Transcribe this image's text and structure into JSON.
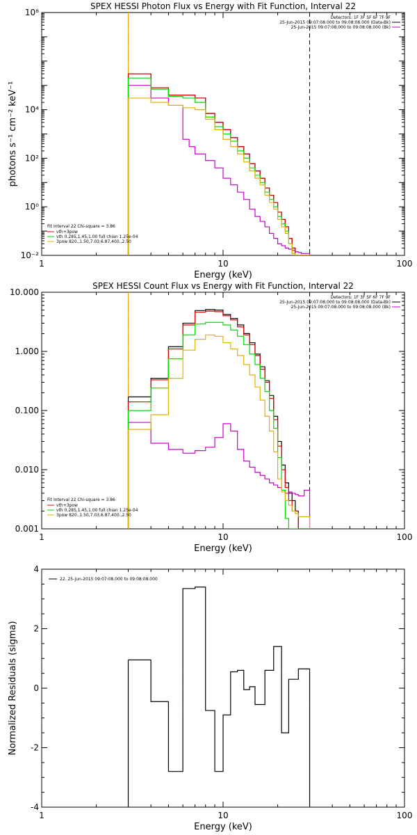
{
  "chart_data": [
    {
      "type": "line",
      "title": "SPEX HESSI Photon Flux vs Energy with Fit Function, Interval 22",
      "xlabel": "Energy (keV)",
      "ylabel": "photons s⁻¹ cm⁻² keV⁻¹",
      "xscale": "log",
      "yscale": "log",
      "xlim": [
        1,
        100
      ],
      "ylim": [
        0.01,
        100000000
      ],
      "x_ticks": [
        {
          "value": 1,
          "label": "1"
        },
        {
          "value": 10,
          "label": "10"
        },
        {
          "value": 100,
          "label": "100"
        }
      ],
      "y_ticks": [
        {
          "value": 0.01,
          "label": "10⁻²"
        },
        {
          "value": 1,
          "label": "10⁰"
        },
        {
          "value": 100,
          "label": "10²"
        },
        {
          "value": 10000,
          "label": "10⁴"
        },
        {
          "value": 100000000,
          "label": "10⁸"
        }
      ],
      "x_edges": [
        3,
        3.5,
        4,
        5,
        6,
        6.5,
        7,
        8,
        9,
        10,
        11,
        12,
        13,
        14,
        15,
        16,
        17,
        18,
        19,
        20,
        21,
        22,
        23,
        24,
        25,
        26,
        27,
        28,
        30
      ],
      "vlines": [
        {
          "x": 3,
          "style": "dotted",
          "color": "#000000"
        },
        {
          "x": 3,
          "style": "solid",
          "color": "#ffa500"
        },
        {
          "x": 30,
          "style": "dashed",
          "color": "#000000"
        }
      ],
      "series": [
        {
          "name": "Detectors: 1F 3F 5F 6F 7F 9F",
          "color": "#000000",
          "y": []
        },
        {
          "name": "25-Jun-2015 09:07:08.000 to 09:08:08.000 (Data-Bk)",
          "color": "#000000",
          "y": [
            300000,
            300000,
            80000,
            40000,
            40000,
            40000,
            30000,
            7000,
            3000,
            1500,
            700,
            300,
            150,
            60,
            30,
            15,
            6,
            3,
            1.5,
            0.6,
            0.3,
            0.15,
            0.05,
            0.02,
            0.01,
            0.01,
            0.01,
            0.01
          ]
        },
        {
          "name": "25-Jun-2015 09:07:08.000 to 09:08:08.000 (Bk)",
          "color": "#cc00cc",
          "y": [
            100000,
            100000,
            30000,
            15000,
            600,
            300,
            150,
            80,
            40,
            15,
            8,
            4,
            2,
            0.8,
            0.4,
            0.25,
            0.15,
            0.08,
            0.05,
            0.03,
            0.025,
            0.02,
            0.018,
            0.016,
            0.014,
            0.013,
            0.012,
            0.012
          ]
        },
        {
          "name": "vth+3pow",
          "color": "#d40000",
          "y": [
            300000,
            300000,
            80000,
            40000,
            40000,
            40000,
            30000,
            7000,
            3000,
            1500,
            700,
            300,
            150,
            60,
            30,
            15,
            6,
            3,
            1.5,
            0.6,
            0.3,
            0.15,
            0.05,
            0.02,
            0.01,
            0.01,
            0.01,
            0.01
          ]
        },
        {
          "name": "vth 0.285,1.45,1.00 full chian 1.25e-04",
          "color": "#00dd00",
          "y": [
            200000,
            200000,
            70000,
            35000,
            30000,
            30000,
            20000,
            5000,
            2000,
            1000,
            500,
            200,
            100,
            40,
            20,
            10,
            4,
            2,
            1,
            0.4,
            0.2,
            0.1,
            0.03,
            0.012,
            0.01,
            0.01,
            0.01,
            0.01
          ]
        },
        {
          "name": "3pow 820.,1.50,7.03,6.87,400.,2.50",
          "color": "#e0b000",
          "y": [
            30000,
            30000,
            20000,
            15000,
            12000,
            12000,
            10000,
            4000,
            1500,
            600,
            300,
            150,
            70,
            30,
            15,
            8,
            3,
            1.5,
            0.8,
            0.3,
            0.15,
            0.08,
            0.03,
            0.012,
            0.01,
            0.01,
            0.01,
            0.01
          ]
        }
      ],
      "annotations": [
        "Fit Interval 22   Chi-square = 3.86"
      ],
      "grid": false,
      "legend_placement": [
        "top-right",
        "bottom-left"
      ]
    },
    {
      "type": "line",
      "title": "SPEX HESSI Count Flux vs Energy with Fit Function, Interval 22",
      "xlabel": "Energy (keV)",
      "ylabel": "",
      "xscale": "log",
      "yscale": "log",
      "xlim": [
        1,
        100
      ],
      "ylim": [
        0.001,
        10
      ],
      "x_ticks": [
        {
          "value": 1,
          "label": "1"
        },
        {
          "value": 10,
          "label": "10"
        },
        {
          "value": 100,
          "label": "100"
        }
      ],
      "y_ticks": [
        {
          "value": 0.001,
          "label": "0.001"
        },
        {
          "value": 0.01,
          "label": "0.010"
        },
        {
          "value": 0.1,
          "label": "0.100"
        },
        {
          "value": 1,
          "label": "1.000"
        },
        {
          "value": 10,
          "label": "10.000"
        }
      ],
      "x_edges": [
        3,
        4,
        5,
        6,
        7,
        8,
        9,
        10,
        11,
        12,
        13,
        14,
        15,
        16,
        17,
        18,
        19,
        20,
        21,
        22,
        23,
        24,
        25,
        26,
        27,
        28,
        30
      ],
      "vlines": [
        {
          "x": 3,
          "style": "dotted",
          "color": "#000000"
        },
        {
          "x": 3,
          "style": "solid",
          "color": "#ffa500"
        },
        {
          "x": 30,
          "style": "dashed",
          "color": "#000000"
        }
      ],
      "series": [
        {
          "name": "Detectors: 1F 3F 5F 6F 7F 9F",
          "color": "#000000",
          "y": []
        },
        {
          "name": "25-Jun-2015 09:07:08.000 to 09:08:08.000 (Data-Bk)",
          "color": "#000000",
          "y": [
            0.17,
            0.35,
            1.2,
            3.0,
            4.9,
            5.1,
            5.0,
            4.2,
            3.6,
            2.8,
            2.0,
            1.4,
            0.9,
            0.55,
            0.32,
            0.18,
            0.08,
            0.03,
            0.012,
            0.006,
            0.004,
            0.003,
            0.002,
            0.001,
            0.001,
            0.001
          ]
        },
        {
          "name": "25-Jun-2015 09:07:08.000 to 09:08:08.000 (Bk)",
          "color": "#cc00cc",
          "y": [
            0.063,
            0.028,
            0.022,
            0.019,
            0.021,
            0.024,
            0.035,
            0.06,
            0.045,
            0.022,
            0.014,
            0.011,
            0.009,
            0.008,
            0.007,
            0.006,
            0.0055,
            0.005,
            0.0045,
            0.004,
            0.0042,
            0.004,
            0.0038,
            0.0036,
            0.0036,
            0.0045
          ]
        },
        {
          "name": "vth+3pow",
          "color": "#d40000",
          "y": [
            0.14,
            0.33,
            1.1,
            2.8,
            4.6,
            4.8,
            4.7,
            4.0,
            3.4,
            2.6,
            1.9,
            1.3,
            0.85,
            0.5,
            0.3,
            0.16,
            0.07,
            0.025,
            0.01,
            0.005,
            0.003,
            0.002,
            0.002,
            0.001,
            0.001,
            0.001
          ]
        },
        {
          "name": "vth 0.285,1.45,1.00 full chian 1.25e-04",
          "color": "#00dd00",
          "y": [
            0.1,
            0.24,
            0.75,
            1.9,
            2.9,
            3.1,
            3.1,
            2.8,
            2.3,
            1.8,
            1.3,
            0.9,
            0.6,
            0.35,
            0.21,
            0.1,
            0.05,
            0.016,
            0.0045,
            0.0015,
            0.001,
            0.001,
            0.001,
            0.001,
            0.001,
            0.001
          ]
        },
        {
          "name": "3pow 820.,1.50,7.03,6.87,400.,2.50",
          "color": "#e0b000",
          "y": [
            0.048,
            0.085,
            0.35,
            1.05,
            1.6,
            1.9,
            1.8,
            1.4,
            1.1,
            0.85,
            0.6,
            0.4,
            0.25,
            0.15,
            0.08,
            0.045,
            0.02,
            0.007,
            0.0042,
            0.003,
            0.0025,
            0.002,
            0.0018,
            0.0016,
            0.0016,
            0.0016
          ]
        }
      ],
      "annotations": [
        "Fit Interval 22   Chi-square = 3.86"
      ],
      "grid": false,
      "legend_placement": [
        "top-right",
        "bottom-left"
      ]
    },
    {
      "type": "line",
      "title": "",
      "xlabel": "Energy (keV)",
      "ylabel": "Normalized Residuals (sigma)",
      "xscale": "log",
      "yscale": "linear",
      "xlim": [
        1,
        100
      ],
      "ylim": [
        -4,
        4
      ],
      "x_ticks": [
        {
          "value": 1,
          "label": "1"
        },
        {
          "value": 10,
          "label": "10"
        },
        {
          "value": 100,
          "label": "100"
        }
      ],
      "y_ticks": [
        {
          "value": -4,
          "label": "-4"
        },
        {
          "value": -2,
          "label": "-2"
        },
        {
          "value": 0,
          "label": "0"
        },
        {
          "value": 2,
          "label": "2"
        },
        {
          "value": 4,
          "label": "4"
        }
      ],
      "x_edges": [
        3,
        4,
        5,
        6,
        7,
        8,
        9,
        10,
        11,
        12,
        13,
        14,
        15,
        16,
        17,
        18,
        19,
        20,
        21,
        22,
        23,
        24,
        25,
        26,
        27,
        28,
        30
      ],
      "series": [
        {
          "name": "22. 25-Jun-2015 09:07:08.000 to 09:08:08.000",
          "color": "#000000",
          "y": [
            0.95,
            -0.45,
            -2.8,
            3.35,
            3.4,
            -0.75,
            -2.8,
            -0.9,
            0.55,
            0.6,
            -0.05,
            0.05,
            -0.55,
            0.6,
            1.4,
            -1.5,
            0.3,
            0.65
          ]
        }
      ],
      "residual_edges": [
        3,
        4,
        5,
        6,
        7,
        8,
        9,
        10,
        11,
        12,
        13,
        14,
        15,
        16,
        17,
        18,
        19,
        20,
        21,
        22,
        23,
        24,
        25,
        26,
        27,
        28,
        30
      ],
      "residual_bin_edges_used": [
        3,
        4,
        5,
        6,
        7,
        8,
        9,
        10,
        11,
        12,
        13,
        14,
        15,
        17,
        19,
        21,
        23,
        26,
        30
      ],
      "grid": false,
      "legend_placement": "top-left"
    }
  ]
}
